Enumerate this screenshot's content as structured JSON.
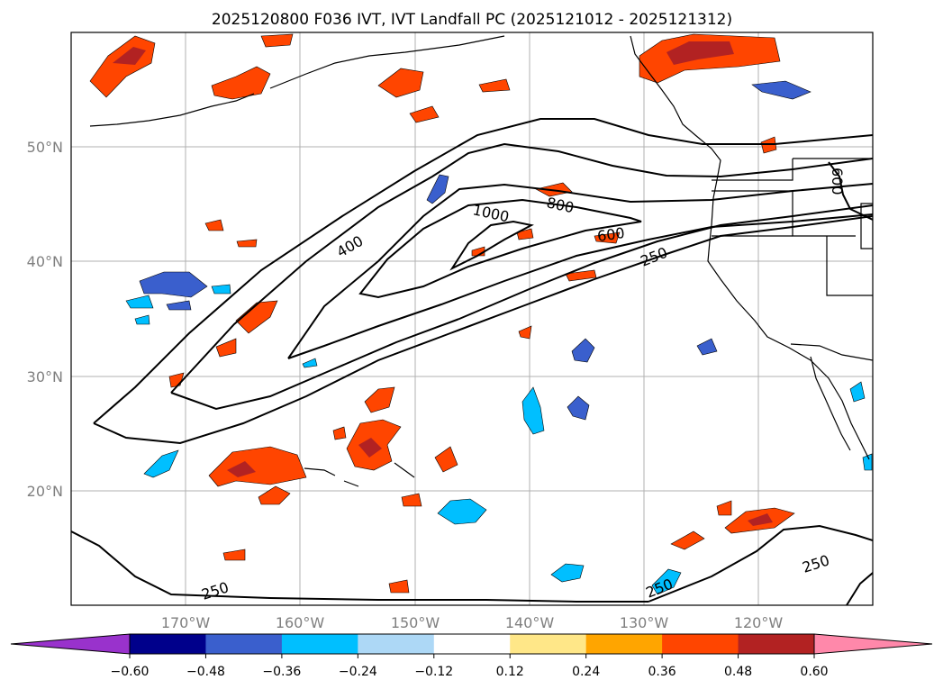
{
  "title": "2025120800 F036 IVT, IVT Landfall PC (2025121012 - 2025121312)",
  "lon_ticks": [
    "170°W",
    "160°W",
    "150°W",
    "140°W",
    "130°W",
    "120°W"
  ],
  "lat_ticks": [
    "50°N",
    "40°N",
    "30°N",
    "20°N"
  ],
  "contour_labels": [
    "1000",
    "800",
    "600",
    "400",
    "250",
    "250",
    "250",
    "250",
    "600"
  ],
  "colorbar": {
    "ticks": [
      "−0.60",
      "−0.48",
      "−0.36",
      "−0.24",
      "−0.12",
      "0.12",
      "0.24",
      "0.36",
      "0.48",
      "0.60"
    ],
    "colors": [
      "#9932cc",
      "#00008b",
      "#3a5fcd",
      "#00bfff",
      "#add8f6",
      "#ffffff",
      "#ffe788",
      "#ffa500",
      "#ff4500",
      "#b22222",
      "#ff88aa"
    ]
  }
}
